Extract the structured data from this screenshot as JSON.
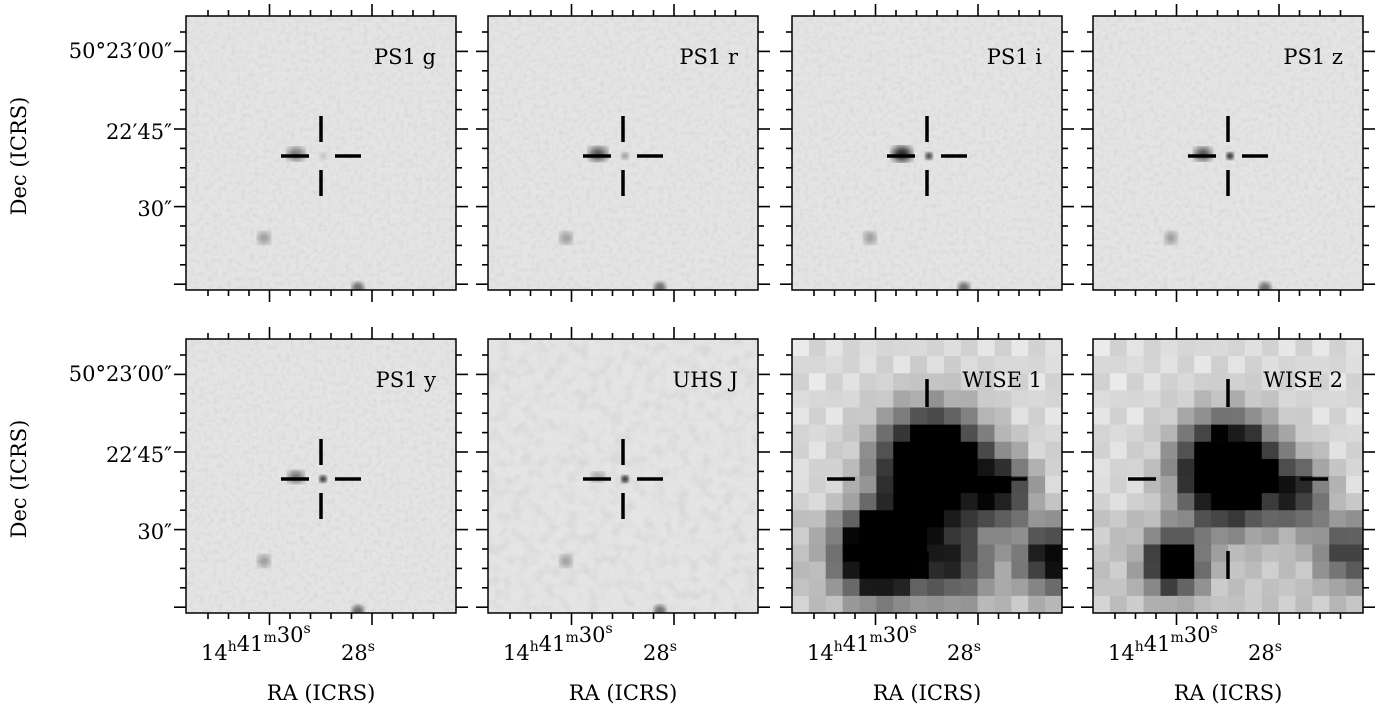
{
  "figure": {
    "panels": [
      {
        "label": "PS1 g",
        "kind": "optical",
        "source_blobs": [
          {
            "dx": -0.18,
            "dy": 0.0,
            "r": 0.7,
            "strength": 0.55
          }
        ],
        "target_dot": 0.15
      },
      {
        "label": "PS1 r",
        "kind": "optical",
        "source_blobs": [
          {
            "dx": -0.18,
            "dy": 0.0,
            "r": 0.75,
            "strength": 0.7
          }
        ],
        "target_dot": 0.35
      },
      {
        "label": "PS1 i",
        "kind": "optical",
        "source_blobs": [
          {
            "dx": -0.18,
            "dy": 0.0,
            "r": 0.8,
            "strength": 0.9
          }
        ],
        "target_dot": 0.85
      },
      {
        "label": "PS1 z",
        "kind": "optical",
        "source_blobs": [
          {
            "dx": -0.18,
            "dy": 0.0,
            "r": 0.7,
            "strength": 0.75
          }
        ],
        "target_dot": 0.95
      },
      {
        "label": "PS1 y",
        "kind": "optical",
        "source_blobs": [
          {
            "dx": -0.18,
            "dy": 0.0,
            "r": 0.65,
            "strength": 0.6
          }
        ],
        "target_dot": 0.9
      },
      {
        "label": "UHS J",
        "kind": "optical",
        "source_blobs": [
          {
            "dx": -0.18,
            "dy": 0.0,
            "r": 0.55,
            "strength": 0.35
          }
        ],
        "target_dot": 0.95
      },
      {
        "label": "WISE 1",
        "kind": "wise",
        "target_dot": 0
      },
      {
        "label": "WISE 2",
        "kind": "wise2",
        "target_dot": 0
      }
    ],
    "y_axis": {
      "title": "Dec (ICRS)",
      "ticks": [
        "50°23′00″",
        "22′45″",
        "30″"
      ]
    },
    "x_axis": {
      "title": "RA (ICRS)",
      "tick_major": "14",
      "tick_h": "h",
      "tick_min": "41",
      "tick_m": "m",
      "tick_sec": "30",
      "tick_s": "s",
      "tick_second": "28",
      "tick_second_unit": "s"
    },
    "colors": {
      "sky_light": "#e6e6e6",
      "ink": "#000000"
    }
  }
}
